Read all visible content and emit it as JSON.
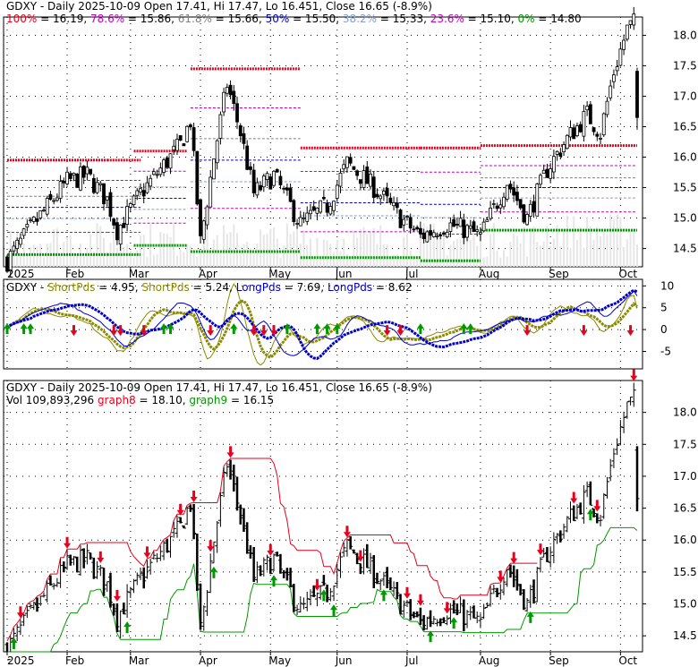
{
  "chart_data": [
    {
      "type": "candlestick",
      "panel": "price-fibonacci",
      "header": [
        {
          "text": "GDXY - Daily 2025-10-09 Open 17.41, Hi 17.47, Lo 16.451, Close 16.65 (-8.9%)",
          "color": "#000000"
        }
      ],
      "fib_legend": [
        {
          "pct": "100%",
          "eq": " = 16.19, ",
          "color": "#e8001c"
        },
        {
          "pct": "78.6%",
          "eq": " = 15.86, ",
          "color": "#c000c0"
        },
        {
          "pct": "61.8%",
          "eq": " = 15.66, ",
          "color": "#808080"
        },
        {
          "pct": "50%",
          "eq": " = 15.50, ",
          "color": "#0000cc"
        },
        {
          "pct": "38.2%",
          "eq": " = 15.33, ",
          "color": "#7f9fcf"
        },
        {
          "pct": "23.6%",
          "eq": " = 15.10, ",
          "color": "#c000c0"
        },
        {
          "pct": "0%",
          "eq": " = 14.80",
          "color": "#009900"
        }
      ],
      "y_ticks": [
        "18.0",
        "17.5",
        "17.0",
        "16.5",
        "16.0",
        "15.5",
        "15.0",
        "14.5"
      ],
      "ylim": [
        14.2,
        18.3
      ],
      "x_ticks": [
        "2025",
        "Feb",
        "Mar",
        "Apr",
        "May",
        "Jun",
        "Jul",
        "Aug",
        "Sep",
        "Oct"
      ],
      "last_bar": {
        "date": "2025-10-09",
        "open": 17.41,
        "high": 17.47,
        "low": 16.451,
        "close": 16.65
      },
      "fib_levels": {
        "100": 16.19,
        "78.6": 15.86,
        "61.8": 15.66,
        "50": 15.5,
        "38.2": 15.33,
        "23.6": 15.1,
        "0": 14.8
      }
    },
    {
      "type": "line",
      "panel": "oscillator",
      "header": [
        {
          "text": "GDXY - ",
          "color": "#000000"
        },
        {
          "text": "ShortPds",
          "color": "#8b8b00"
        },
        {
          "text": " = 4.95, ",
          "color": "#000000"
        },
        {
          "text": "ShortPds",
          "color": "#8b8b00"
        },
        {
          "text": " = 5.24, ",
          "color": "#000000"
        },
        {
          "text": "LongPds",
          "color": "#0000cc"
        },
        {
          "text": " = 7.69, ",
          "color": "#000000"
        },
        {
          "text": "LongPds",
          "color": "#0000cc"
        },
        {
          "text": " = 8.62",
          "color": "#000000"
        }
      ],
      "y_ticks": [
        "10",
        "5",
        "0",
        "-5"
      ],
      "ylim": [
        -9,
        11.5
      ],
      "series": [
        {
          "name": "ShortPds",
          "last": 4.95,
          "color": "#8b8b00"
        },
        {
          "name": "ShortPds",
          "last": 5.24,
          "color": "#8b8b00"
        },
        {
          "name": "LongPds",
          "last": 7.69,
          "color": "#0000cc"
        },
        {
          "name": "LongPds",
          "last": 8.62,
          "color": "#0000cc"
        }
      ]
    },
    {
      "type": "ohlc",
      "panel": "price-stops",
      "header": [
        {
          "text": "GDXY - Daily 2025-10-09 Open 17.41, Hi 17.47, Lo 16.451, Close 16.65 (-8.9%)",
          "color": "#000000"
        }
      ],
      "header2": [
        {
          "text": "Vol 109,893,296 ",
          "color": "#000000"
        },
        {
          "text": "graph8",
          "color": "#e8001c"
        },
        {
          "text": " = 18.10, ",
          "color": "#000000"
        },
        {
          "text": "graph9",
          "color": "#009900"
        },
        {
          "text": " = 16.15",
          "color": "#000000"
        }
      ],
      "y_ticks": [
        "18.0",
        "17.5",
        "17.0",
        "16.5",
        "16.0",
        "15.5",
        "15.0",
        "14.5"
      ],
      "ylim": [
        14.25,
        18.5
      ],
      "x_ticks": [
        "2025",
        "Feb",
        "Mar",
        "Apr",
        "May",
        "Jun",
        "Jul",
        "Aug",
        "Sep",
        "Oct"
      ],
      "series": [
        {
          "name": "graph8",
          "last": 18.1,
          "color": "#e8001c"
        },
        {
          "name": "graph9",
          "last": 16.15,
          "color": "#009900"
        }
      ]
    }
  ]
}
